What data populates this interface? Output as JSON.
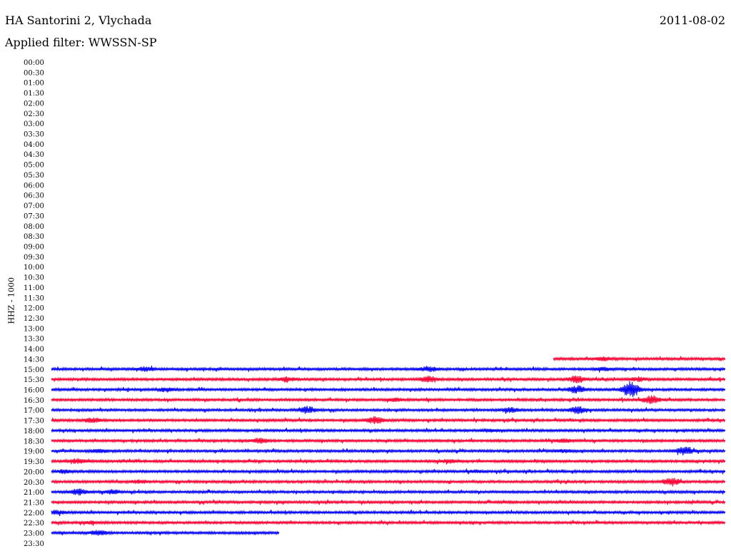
{
  "header": {
    "station": "HA Santorini 2, Vlychada",
    "date": "2011-08-02",
    "filter": "Applied filter: WWSSN-SP"
  },
  "chart_data": {
    "type": "line",
    "ylabel": "HHZ - 1000",
    "row_labels": [
      "00:00",
      "00:30",
      "01:00",
      "01:30",
      "02:00",
      "02:30",
      "03:00",
      "03:30",
      "04:00",
      "04:30",
      "05:00",
      "05:30",
      "06:00",
      "06:30",
      "07:00",
      "07:30",
      "08:00",
      "08:30",
      "09:00",
      "09:30",
      "10:00",
      "10:30",
      "11:00",
      "11:30",
      "12:00",
      "12:30",
      "13:00",
      "13:30",
      "14:00",
      "14:30",
      "15:00",
      "15:30",
      "16:00",
      "16:30",
      "17:00",
      "17:30",
      "18:00",
      "18:30",
      "19:00",
      "19:30",
      "20:00",
      "20:30",
      "21:00",
      "21:30",
      "22:00",
      "22:30",
      "23:00",
      "23:30"
    ],
    "series_colors": [
      "#0000ff",
      "#ff0033"
    ],
    "traces": [
      {
        "row": 29,
        "start": 0.745,
        "end": 1.0,
        "bursts": [
          [
            0.82,
            0.4
          ]
        ]
      },
      {
        "row": 30,
        "start": 0.0,
        "end": 1.0,
        "bursts": [
          [
            0.14,
            0.5
          ],
          [
            0.56,
            0.7
          ],
          [
            0.82,
            0.4
          ]
        ]
      },
      {
        "row": 31,
        "start": 0.0,
        "end": 1.0,
        "bursts": [
          [
            0.35,
            0.6
          ],
          [
            0.56,
            0.8
          ],
          [
            0.78,
            0.9
          ],
          [
            0.87,
            0.5
          ]
        ]
      },
      {
        "row": 32,
        "start": 0.0,
        "end": 1.0,
        "bursts": [
          [
            0.17,
            0.5
          ],
          [
            0.78,
            1.0
          ],
          [
            0.86,
            2.2
          ]
        ]
      },
      {
        "row": 33,
        "start": 0.0,
        "end": 1.0,
        "bursts": [
          [
            0.51,
            0.4
          ],
          [
            0.89,
            1.1
          ]
        ]
      },
      {
        "row": 34,
        "start": 0.0,
        "end": 1.0,
        "bursts": [
          [
            0.38,
            0.9
          ],
          [
            0.68,
            0.6
          ],
          [
            0.78,
            0.9
          ]
        ]
      },
      {
        "row": 35,
        "start": 0.0,
        "end": 1.0,
        "bursts": [
          [
            0.06,
            0.6
          ],
          [
            0.48,
            0.9
          ]
        ]
      },
      {
        "row": 36,
        "start": 0.0,
        "end": 1.0,
        "bursts": [
          [
            0.65,
            0.3
          ]
        ]
      },
      {
        "row": 37,
        "start": 0.0,
        "end": 1.0,
        "bursts": [
          [
            0.31,
            0.6
          ],
          [
            0.76,
            0.4
          ]
        ]
      },
      {
        "row": 38,
        "start": 0.0,
        "end": 1.0,
        "bursts": [
          [
            0.07,
            0.4
          ],
          [
            0.76,
            0.4
          ],
          [
            0.94,
            1.1
          ]
        ]
      },
      {
        "row": 39,
        "start": 0.0,
        "end": 1.0,
        "bursts": [
          [
            0.04,
            0.6
          ],
          [
            0.59,
            0.4
          ]
        ]
      },
      {
        "row": 40,
        "start": 0.0,
        "end": 1.0,
        "bursts": [
          [
            0.02,
            0.4
          ],
          [
            0.63,
            0.3
          ]
        ]
      },
      {
        "row": 41,
        "start": 0.0,
        "end": 1.0,
        "bursts": [
          [
            0.13,
            0.4
          ],
          [
            0.92,
            1.1
          ]
        ]
      },
      {
        "row": 42,
        "start": 0.0,
        "end": 1.0,
        "bursts": [
          [
            0.04,
            0.9
          ],
          [
            0.09,
            0.5
          ]
        ]
      },
      {
        "row": 43,
        "start": 0.0,
        "end": 1.0,
        "bursts": []
      },
      {
        "row": 44,
        "start": 0.0,
        "end": 1.0,
        "bursts": [
          [
            0.01,
            0.5
          ]
        ]
      },
      {
        "row": 45,
        "start": 0.0,
        "end": 1.0,
        "bursts": [
          [
            0.06,
            0.3
          ]
        ]
      },
      {
        "row": 46,
        "start": 0.0,
        "end": 0.338,
        "bursts": [
          [
            0.07,
            0.6
          ]
        ]
      }
    ]
  }
}
